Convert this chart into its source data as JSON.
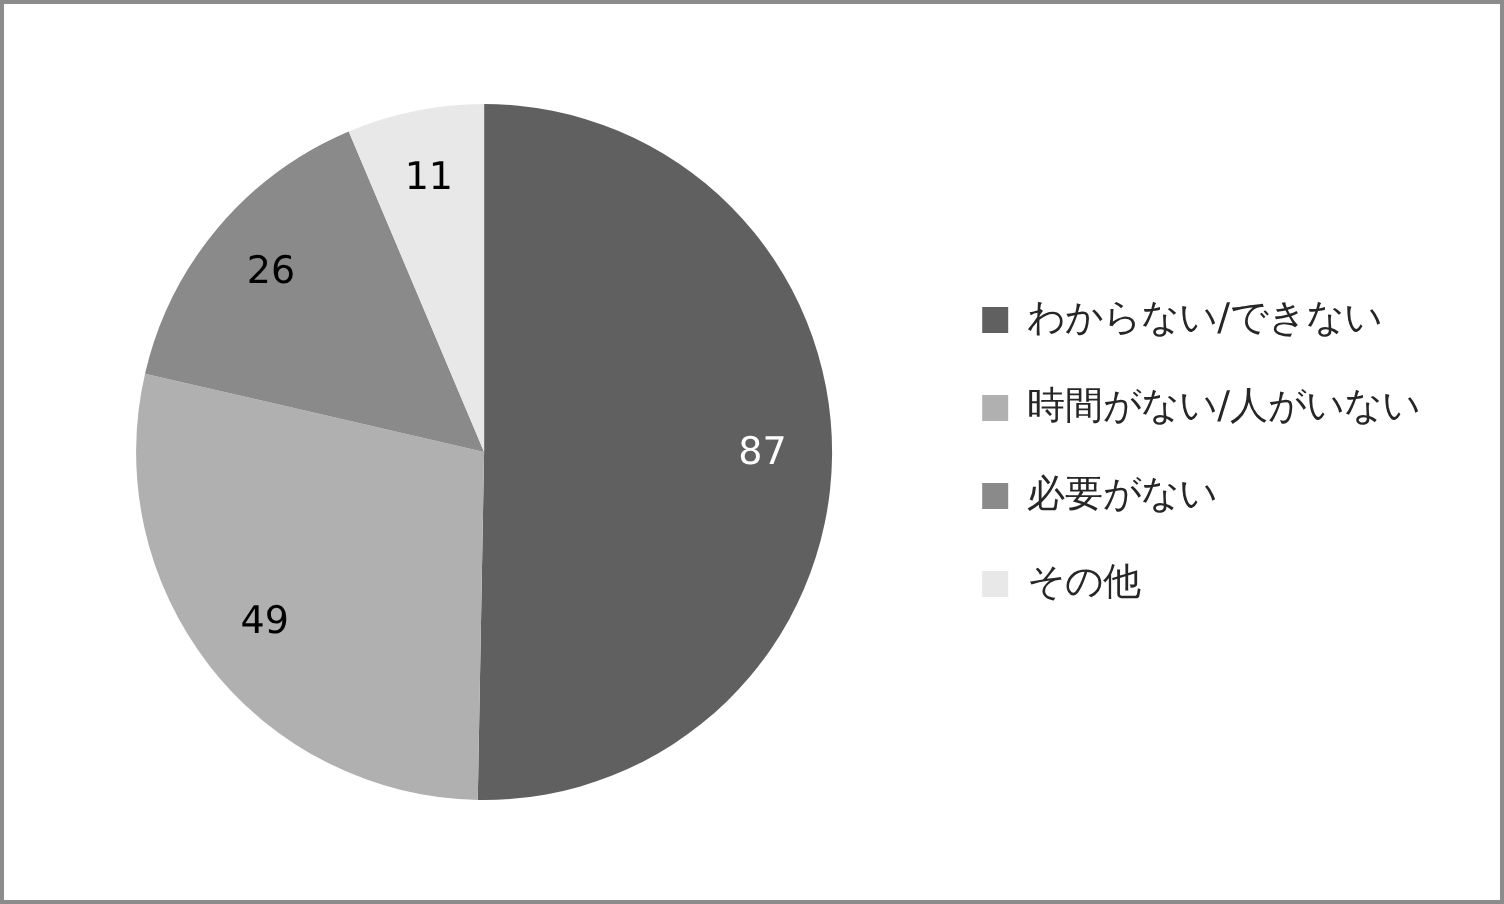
{
  "chart_data": {
    "type": "pie",
    "categories": [
      "わからない/できない",
      "時間がない/人がいない",
      "必要がない",
      "その他"
    ],
    "values": [
      87,
      49,
      26,
      11
    ],
    "colors": [
      "#606060",
      "#b0b0b0",
      "#8a8a8a",
      "#e8e8e8"
    ],
    "data_labels": true,
    "legend": "right"
  }
}
